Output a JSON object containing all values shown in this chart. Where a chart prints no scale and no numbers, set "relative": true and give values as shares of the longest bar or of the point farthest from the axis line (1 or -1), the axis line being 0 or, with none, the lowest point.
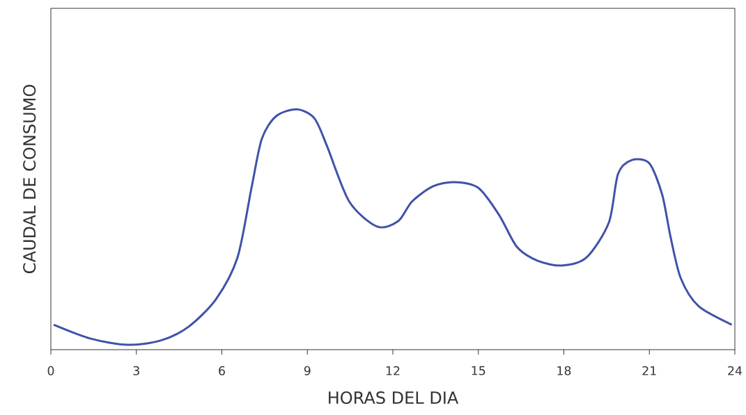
{
  "chart_data": {
    "type": "line",
    "relative": true,
    "xlabel": "HORAS DEL DIA",
    "ylabel": "CAUDAL DE CONSUMO",
    "color": "#4052a8",
    "marker": "none",
    "line_style": "solid",
    "xlim": [
      0,
      24
    ],
    "xticks": [
      0,
      3,
      6,
      9,
      12,
      15,
      18,
      21,
      24
    ],
    "x": [
      0.1,
      1.4,
      2.7,
      3.85,
      4.83,
      5.8,
      6.55,
      7.04,
      7.4,
      7.9,
      8.63,
      9.25,
      9.69,
      10.47,
      11.45,
      12.19,
      12.67,
      13.4,
      14.15,
      15.0,
      15.74,
      16.35,
      17.08,
      17.94,
      18.8,
      19.58,
      19.9,
      20.39,
      21.0,
      21.45,
      21.74,
      22.1,
      22.72,
      23.89
    ],
    "values": [
      0.104,
      0.046,
      0.02,
      0.038,
      0.095,
      0.211,
      0.384,
      0.673,
      0.876,
      0.971,
      1.0,
      0.962,
      0.847,
      0.616,
      0.512,
      0.535,
      0.616,
      0.679,
      0.697,
      0.673,
      0.558,
      0.428,
      0.37,
      0.35,
      0.384,
      0.529,
      0.731,
      0.789,
      0.775,
      0.645,
      0.471,
      0.298,
      0.182,
      0.104
    ]
  }
}
